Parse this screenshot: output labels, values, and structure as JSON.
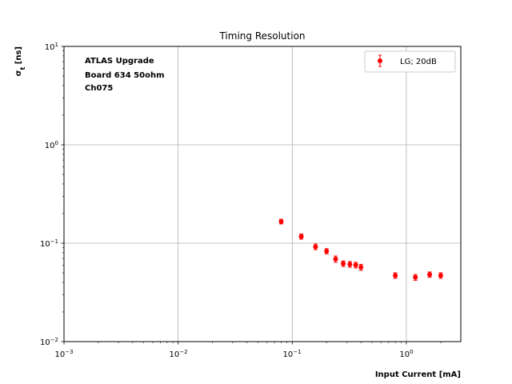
{
  "chart_data": {
    "type": "scatter",
    "title": "Timing Resolution",
    "xlabel": "Input Current [mA]",
    "ylabel_main": "σ",
    "ylabel_sub": "t",
    "ylabel_unit": " [ns]",
    "xscale": "log",
    "yscale": "log",
    "xlim": [
      0.001,
      3
    ],
    "ylim": [
      0.01,
      10
    ],
    "grid": true,
    "legend_position": "top-right",
    "x_ticks": [
      {
        "value": 0.001,
        "base": "10",
        "exp": "−3"
      },
      {
        "value": 0.01,
        "base": "10",
        "exp": "−2"
      },
      {
        "value": 0.1,
        "base": "10",
        "exp": "−1"
      },
      {
        "value": 1,
        "base": "10",
        "exp": "0"
      }
    ],
    "y_ticks": [
      {
        "value": 0.01,
        "base": "10",
        "exp": "−2"
      },
      {
        "value": 0.1,
        "base": "10",
        "exp": "−1"
      },
      {
        "value": 1,
        "base": "10",
        "exp": "0"
      },
      {
        "value": 10,
        "base": "10",
        "exp": "1"
      }
    ],
    "annotation": [
      "ATLAS Upgrade",
      "Board 634 50ohm",
      "Ch075"
    ],
    "series": [
      {
        "name": "LG; 20dB",
        "color": "#ff0000",
        "x": [
          0.08,
          0.12,
          0.16,
          0.2,
          0.24,
          0.28,
          0.32,
          0.36,
          0.4,
          0.8,
          1.2,
          1.6,
          2.0
        ],
        "y": [
          0.166,
          0.117,
          0.092,
          0.083,
          0.069,
          0.062,
          0.061,
          0.06,
          0.057,
          0.047,
          0.045,
          0.048,
          0.047
        ],
        "yerr": [
          0.009,
          0.007,
          0.006,
          0.005,
          0.005,
          0.004,
          0.004,
          0.004,
          0.004,
          0.003,
          0.003,
          0.003,
          0.003
        ]
      }
    ]
  }
}
